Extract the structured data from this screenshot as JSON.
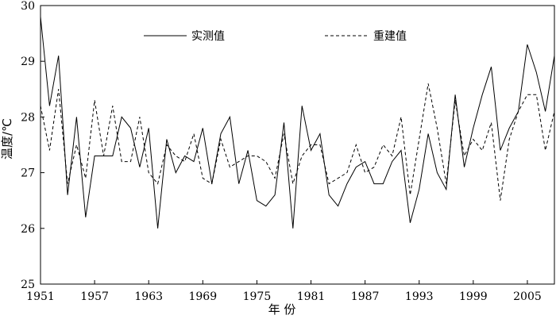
{
  "chart_data": {
    "type": "line",
    "xlabel": "年 份",
    "ylabel": "温度/℃",
    "xlim": [
      1951,
      2008
    ],
    "ylim": [
      25,
      30
    ],
    "xticks": [
      1951,
      1957,
      1963,
      1969,
      1975,
      1981,
      1987,
      1993,
      1999,
      2005
    ],
    "yticks": [
      25,
      26,
      27,
      28,
      29,
      30
    ],
    "legend_position": "top-center",
    "grid": false,
    "x": [
      1951,
      1952,
      1953,
      1954,
      1955,
      1956,
      1957,
      1958,
      1959,
      1960,
      1961,
      1962,
      1963,
      1964,
      1965,
      1966,
      1967,
      1968,
      1969,
      1970,
      1971,
      1972,
      1973,
      1974,
      1975,
      1976,
      1977,
      1978,
      1979,
      1980,
      1981,
      1982,
      1983,
      1984,
      1985,
      1986,
      1987,
      1988,
      1989,
      1990,
      1991,
      1992,
      1993,
      1994,
      1995,
      1996,
      1997,
      1998,
      1999,
      2000,
      2001,
      2002,
      2003,
      2004,
      2005,
      2006,
      2007,
      2008
    ],
    "series": [
      {
        "name": "实测值",
        "style": "solid",
        "color": "#000000",
        "values": [
          29.8,
          28.2,
          29.1,
          26.6,
          28.0,
          26.2,
          27.3,
          27.3,
          27.3,
          28.0,
          27.8,
          27.1,
          27.8,
          26.0,
          27.6,
          27.0,
          27.3,
          27.2,
          27.8,
          26.8,
          27.7,
          28.0,
          26.8,
          27.4,
          26.5,
          26.4,
          26.6,
          27.9,
          26.0,
          28.2,
          27.4,
          27.7,
          26.6,
          26.4,
          26.8,
          27.1,
          27.2,
          26.8,
          26.8,
          27.2,
          27.4,
          26.1,
          26.7,
          27.7,
          27.0,
          26.7,
          28.4,
          27.1,
          27.8,
          28.4,
          28.9,
          27.4,
          27.8,
          28.1,
          29.3,
          28.8,
          28.1,
          29.1
        ]
      },
      {
        "name": "重建值",
        "style": "dashed",
        "color": "#000000",
        "values": [
          28.2,
          27.4,
          28.5,
          26.8,
          27.5,
          26.9,
          28.3,
          27.3,
          28.2,
          27.2,
          27.2,
          28.0,
          27.0,
          26.8,
          27.5,
          27.3,
          27.2,
          27.7,
          26.9,
          26.8,
          27.6,
          27.1,
          27.2,
          27.3,
          27.3,
          27.2,
          26.9,
          27.7,
          26.8,
          27.3,
          27.5,
          27.5,
          26.8,
          26.9,
          27.0,
          27.5,
          27.0,
          27.1,
          27.5,
          27.3,
          28.0,
          26.6,
          27.6,
          28.6,
          27.8,
          26.8,
          28.3,
          27.3,
          27.6,
          27.4,
          27.9,
          26.5,
          27.6,
          28.1,
          28.4,
          28.4,
          27.4,
          28.1
        ]
      }
    ]
  }
}
